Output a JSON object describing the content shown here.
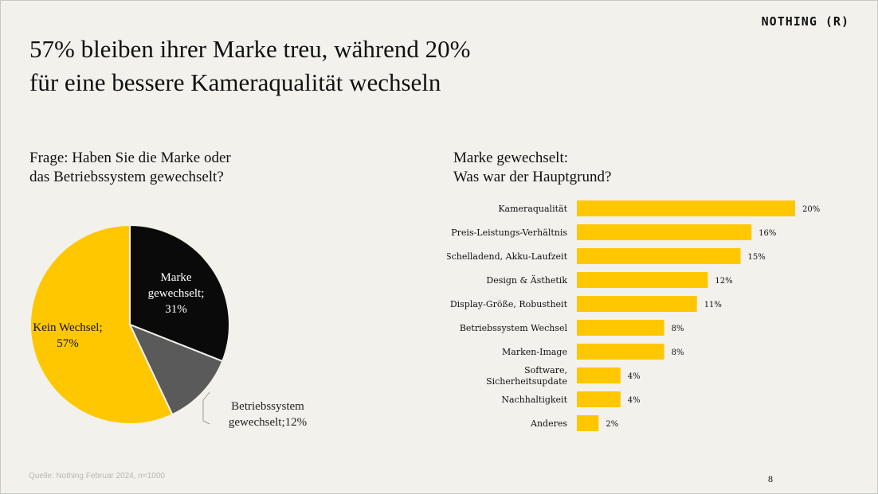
{
  "header": {
    "logo": "NOTHING (R)"
  },
  "title_line1": "57% bleiben ihrer Marke treu, während 20%",
  "title_line2": "für eine bessere Kameraqualität wechseln",
  "left_question_line1": "Frage: Haben Sie die Marke oder",
  "left_question_line2": "das Betriebssystem gewechselt?",
  "right_question_line1": "Marke gewechselt:",
  "right_question_line2": "Was war der Hauptgrund?",
  "footer": {
    "source": "Quelle: Nothing Februar 2024, n=1000",
    "page": "8"
  },
  "colors": {
    "yellow": "#ffc700",
    "black": "#0a0a0a",
    "gray": "#5a5a5a",
    "background": "#f2f1ec"
  },
  "chart_data": [
    {
      "type": "pie",
      "slices": [
        {
          "label_lines": [
            "Marke",
            "gewechselt;",
            "31%"
          ],
          "value": 31,
          "color": "#0a0a0a"
        },
        {
          "label_lines": [
            "Betriebssystem",
            "gewechselt;12%"
          ],
          "value": 12,
          "color": "#5a5a5a"
        },
        {
          "label_lines": [
            "Kein Wechsel;",
            "57%"
          ],
          "value": 57,
          "color": "#ffc700"
        }
      ]
    },
    {
      "type": "bar",
      "orientation": "horizontal",
      "color": "#ffc700",
      "categories": [
        [
          "Kameraqualität"
        ],
        [
          "Preis-Leistungs-Verhältnis"
        ],
        [
          "Schelladend, Akku-Laufzeit"
        ],
        [
          "Design & Ästhetik"
        ],
        [
          "Display-Größe, Robustheit"
        ],
        [
          "Betriebssystem Wechsel"
        ],
        [
          "Marken-Image"
        ],
        [
          "Software,",
          "Sicherheitsupdate"
        ],
        [
          "Nachhaltigkeit"
        ],
        [
          "Anderes"
        ]
      ],
      "values": [
        20,
        16,
        15,
        12,
        11,
        8,
        8,
        4,
        4,
        2
      ],
      "value_labels": [
        "20%",
        "16%",
        "15%",
        "12%",
        "11%",
        "8%",
        "8%",
        "4%",
        "4%",
        "2%"
      ]
    }
  ]
}
